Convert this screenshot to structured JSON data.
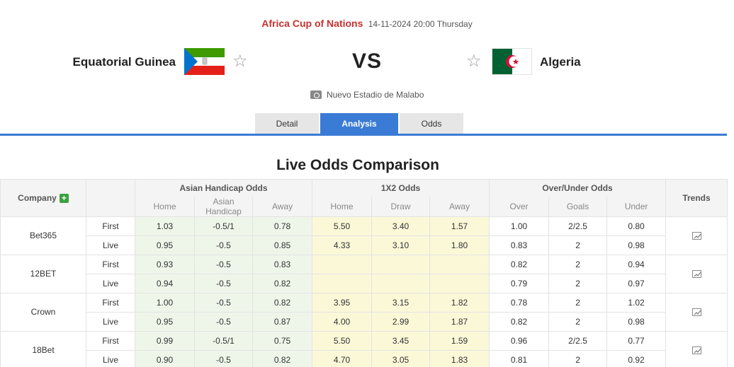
{
  "match": {
    "competition": "Africa Cup of Nations",
    "datetime": "14-11-2024 20:00 Thursday",
    "home_team": "Equatorial Guinea",
    "away_team": "Algeria",
    "vs": "VS",
    "venue": "Nuevo Estadio de Malabo"
  },
  "tabs": [
    {
      "label": "Detail",
      "active": false
    },
    {
      "label": "Analysis",
      "active": true
    },
    {
      "label": "Odds",
      "active": false
    }
  ],
  "section_title": "Live Odds Comparison",
  "table": {
    "company_header": "Company",
    "trends_header": "Trends",
    "groups": [
      "Asian Handicap Odds",
      "1X2 Odds",
      "Over/Under Odds"
    ],
    "sub_headers": {
      "ah": [
        "Home",
        "Asian Handicap",
        "Away"
      ],
      "x12": [
        "Home",
        "Draw",
        "Away"
      ],
      "ou": [
        "Over",
        "Goals",
        "Under"
      ]
    },
    "bookmakers": [
      {
        "name": "Bet365",
        "rows": [
          {
            "kind": "First",
            "ah": [
              "1.03",
              "-0.5/1",
              "0.78"
            ],
            "x12": [
              "5.50",
              "3.40",
              "1.57"
            ],
            "ou": [
              "1.00",
              "2/2.5",
              "0.80"
            ]
          },
          {
            "kind": "Live",
            "ah": [
              "0.95",
              "-0.5",
              "0.85"
            ],
            "x12": [
              "4.33",
              "3.10",
              "1.80"
            ],
            "ou": [
              "0.83",
              "2",
              "0.98"
            ]
          }
        ]
      },
      {
        "name": "12BET",
        "rows": [
          {
            "kind": "First",
            "ah": [
              "0.93",
              "-0.5",
              "0.83"
            ],
            "x12": [
              "",
              "",
              ""
            ],
            "ou": [
              "0.82",
              "2",
              "0.94"
            ]
          },
          {
            "kind": "Live",
            "ah": [
              "0.94",
              "-0.5",
              "0.82"
            ],
            "x12": [
              "",
              "",
              ""
            ],
            "ou": [
              "0.79",
              "2",
              "0.97"
            ]
          }
        ]
      },
      {
        "name": "Crown",
        "rows": [
          {
            "kind": "First",
            "ah": [
              "1.00",
              "-0.5",
              "0.82"
            ],
            "x12": [
              "3.95",
              "3.15",
              "1.82"
            ],
            "ou": [
              "0.78",
              "2",
              "1.02"
            ]
          },
          {
            "kind": "Live",
            "ah": [
              "0.95",
              "-0.5",
              "0.87"
            ],
            "x12": [
              "4.00",
              "2.99",
              "1.87"
            ],
            "ou": [
              "0.82",
              "2",
              "0.98"
            ]
          }
        ]
      },
      {
        "name": "18Bet",
        "rows": [
          {
            "kind": "First",
            "ah": [
              "0.99",
              "-0.5/1",
              "0.75"
            ],
            "x12": [
              "5.50",
              "3.45",
              "1.59"
            ],
            "ou": [
              "0.96",
              "2/2.5",
              "0.77"
            ]
          },
          {
            "kind": "Live",
            "ah": [
              "0.90",
              "-0.5",
              "0.82"
            ],
            "x12": [
              "4.70",
              "3.05",
              "1.83"
            ],
            "ou": [
              "0.81",
              "2",
              "0.92"
            ]
          }
        ]
      }
    ]
  },
  "icons": {
    "favorite": "star-outline-icon",
    "venue": "stadium-icon",
    "add_company": "plus-icon",
    "trend": "trend-chart-icon"
  },
  "colors": {
    "competition": "#c8312f",
    "tab_active": "#3a7bd5",
    "ah_bg": "#eef6ea",
    "x12_bg": "#fbf8d8",
    "plus_bg": "#3aa142"
  }
}
